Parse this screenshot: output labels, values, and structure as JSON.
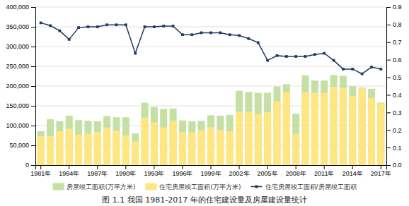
{
  "chart_data": {
    "type": "bar",
    "title": "图 1.1  我国 1981-2017 年的住宅建设量及房屋建设量统计",
    "categories": [
      "1981年",
      null,
      null,
      "1984年",
      null,
      null,
      "1987年",
      null,
      null,
      "1990年",
      null,
      null,
      "1993年",
      null,
      null,
      "1996年",
      null,
      null,
      "1999年",
      null,
      null,
      "2002年",
      null,
      null,
      "2005年",
      null,
      null,
      "2008年",
      null,
      null,
      "2011年",
      null,
      null,
      "2014年",
      null,
      null,
      "2017年"
    ],
    "series": [
      {
        "name": "房屋竣工面积(万平方米)",
        "type": "bar",
        "color": "#c5e0a5",
        "values": [
          86000,
          116000,
          111000,
          125000,
          114000,
          112000,
          111000,
          124000,
          121000,
          121000,
          80000,
          158000,
          147000,
          142000,
          143000,
          113000,
          111000,
          112000,
          126000,
          125000,
          127000,
          188000,
          185000,
          183000,
          183000,
          199000,
          205000,
          130000,
          227000,
          214000,
          214000,
          228000,
          226000,
          200000,
          196000,
          193000,
          158000
        ]
      },
      {
        "name": "住宅房屋竣工面积(万平方米)",
        "type": "bar",
        "color": "#ffe680",
        "values": [
          73000,
          73000,
          86000,
          92000,
          77000,
          80000,
          84000,
          95000,
          87000,
          75000,
          60000,
          120000,
          108000,
          95000,
          112000,
          83000,
          83000,
          88000,
          96000,
          88000,
          86000,
          135000,
          135000,
          130000,
          134000,
          162000,
          185000,
          80000,
          185000,
          183000,
          183000,
          198000,
          195000,
          175000,
          194000,
          170000,
          156000
        ]
      },
      {
        "name": "住宅房屋竣工面积/房屋竣工面积",
        "type": "line",
        "color": "#1f3864",
        "marker": "square",
        "values": [
          360000,
          353000,
          340000,
          318000,
          348000,
          350000,
          350000,
          355000,
          355000,
          355000,
          283000,
          350000,
          350000,
          352000,
          352000,
          330000,
          330000,
          335000,
          335000,
          335000,
          330000,
          328000,
          320000,
          310000,
          265000,
          277000,
          275000,
          275000,
          275000,
          280000,
          283000,
          265000,
          243000,
          243000,
          231000,
          248000,
          243000
        ]
      }
    ],
    "ylim": [
      0,
      400000
    ],
    "yticks": [
      0,
      {
        "value": 50000,
        "label": "50,000"
      },
      {
        "value": 100000,
        "label": "100,000"
      },
      {
        "value": 150000,
        "label": "150,000"
      },
      {
        "value": 200000,
        "label": "200,000"
      },
      {
        "value": 250000,
        "label": "250,000"
      },
      {
        "value": 300000,
        "label": "300,000"
      },
      {
        "value": 350000,
        "label": "350,000"
      },
      {
        "value": 400000,
        "label": "400,000"
      }
    ],
    "y2lim": [
      0,
      0.9
    ],
    "y2ticks": [
      {
        "value": 0,
        "label": "0.0"
      },
      0.1,
      0.2,
      0.3,
      0.4,
      0.5,
      0.6,
      0.7,
      0.8,
      0.9
    ],
    "grid": true,
    "legend": "bottom"
  }
}
